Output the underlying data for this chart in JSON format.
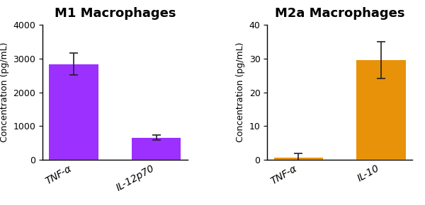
{
  "chart1": {
    "title": "M1 Macrophages",
    "categories": [
      "TNF-α",
      "IL-12p70"
    ],
    "values": [
      2830,
      660
    ],
    "errors": [
      320,
      70
    ],
    "bar_color": "#9B30FF",
    "ylim": [
      0,
      4000
    ],
    "yticks": [
      0,
      1000,
      2000,
      3000,
      4000
    ],
    "ylabel": "Concentration (pg/mL)"
  },
  "chart2": {
    "title": "M2a Macrophages",
    "categories": [
      "TNF-α",
      "IL-10"
    ],
    "values": [
      0.7,
      29.5
    ],
    "errors": [
      1.2,
      5.5
    ],
    "bar_color": "#E8920A",
    "ylim": [
      0,
      40
    ],
    "yticks": [
      0,
      10,
      20,
      30,
      40
    ],
    "ylabel": "Concentration (pg/mL)"
  },
  "background_color": "#ffffff",
  "bar_width": 0.6,
  "capsize": 4,
  "title_fontsize": 13,
  "label_fontsize": 9,
  "tick_fontsize": 9,
  "xtick_fontsize": 10,
  "error_color": "#222222",
  "error_linewidth": 1.2
}
